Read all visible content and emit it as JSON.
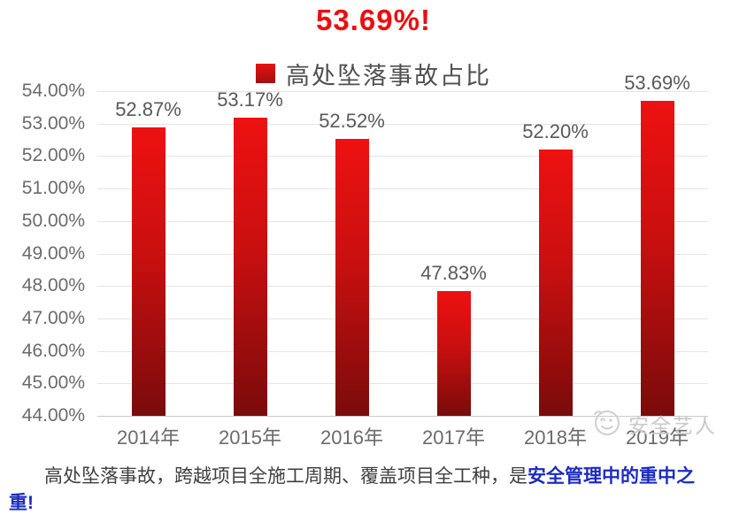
{
  "title": "53.69%!",
  "legend": {
    "label": "高处坠落事故占比"
  },
  "chart_data": {
    "type": "bar",
    "title": "53.69%!",
    "legend_label": "高处坠落事故占比",
    "categories": [
      "2014年",
      "2015年",
      "2016年",
      "2017年",
      "2018年",
      "2019年"
    ],
    "values": [
      52.87,
      53.17,
      52.52,
      47.83,
      52.2,
      53.69
    ],
    "value_labels": [
      "52.87%",
      "53.17%",
      "52.52%",
      "47.83%",
      "52.20%",
      "53.69%"
    ],
    "xlabel": "",
    "ylabel": "",
    "ylim": [
      44,
      54
    ],
    "ytick_step": 1,
    "ytick_labels": [
      "54.00%",
      "53.00%",
      "52.00%",
      "51.00%",
      "50.00%",
      "49.00%",
      "48.00%",
      "47.00%",
      "46.00%",
      "45.00%",
      "44.00%"
    ],
    "grid": true,
    "legend_position": "top-center",
    "bar_color_top": "#ee1111",
    "bar_color_bottom": "#7a0b0b",
    "title_color": "#ec0e0e"
  },
  "watermark": {
    "text": "安全艺人",
    "icon": "smiley-face-icon"
  },
  "caption": {
    "gray_text": "高处坠落事故，跨越项目全施工周期、覆盖项目全工种，是",
    "blue_text_line1": "安全管理中的重中之",
    "blue_text_line2": "重!"
  }
}
